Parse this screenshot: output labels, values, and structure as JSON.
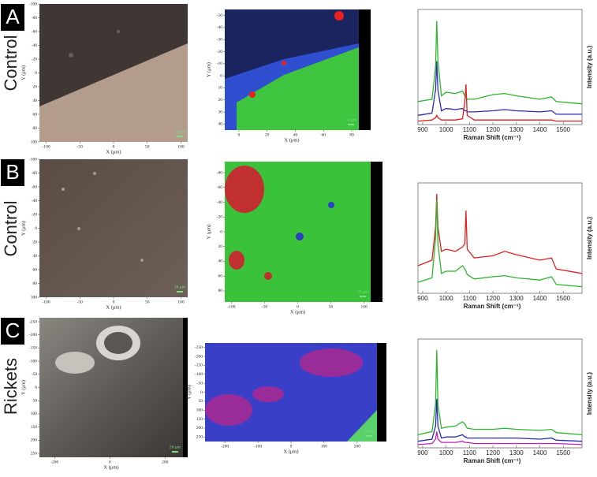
{
  "panels": [
    {
      "label": "A",
      "group": "Control",
      "optical": {
        "xlabel": "X (μm)",
        "ylabel": "Y (μm)",
        "xlim": [
          -110,
          110
        ],
        "xticks": [
          -100,
          -50,
          0,
          50,
          100
        ],
        "ylim": [
          -100,
          100
        ],
        "yticks": [
          -100,
          -80,
          -60,
          -40,
          -20,
          0,
          20,
          40,
          60,
          80,
          100
        ],
        "scale": "10 μm"
      },
      "map": {
        "xlabel": "X (μm)",
        "ylabel": "Y (μm)",
        "xlim": [
          -10,
          85
        ],
        "xticks": [
          0,
          20,
          40,
          60,
          80
        ],
        "ylim": [
          -55,
          45
        ],
        "yticks": [
          -50,
          -40,
          -30,
          -20,
          -10,
          0,
          10,
          20,
          30,
          40
        ],
        "scale": "4 μm"
      }
    },
    {
      "label": "B",
      "group": "Control",
      "optical": {
        "xlabel": "X (μm)",
        "ylabel": "Y (μm)",
        "xlim": [
          -110,
          110
        ],
        "xticks": [
          -100,
          -50,
          0,
          50,
          100
        ],
        "ylim": [
          -100,
          100
        ],
        "yticks": [
          -100,
          -80,
          -60,
          -40,
          -20,
          0,
          20,
          40,
          60,
          80,
          100
        ],
        "scale": "10 μm"
      },
      "map": {
        "xlabel": "X (μm)",
        "ylabel": "Y (μm)",
        "xlim": [
          -110,
          110
        ],
        "xticks": [
          -100,
          -50,
          0,
          50,
          100
        ],
        "ylim": [
          -95,
          95
        ],
        "yticks": [
          -80,
          -60,
          -40,
          -20,
          0,
          20,
          40,
          60,
          80
        ],
        "scale": "30 μm"
      }
    },
    {
      "label": "C",
      "group": "Rickets",
      "optical": {
        "xlabel": "X (μm)",
        "ylabel": "Y (μm)",
        "xlim": [
          -255,
          265
        ],
        "xticks": [
          -200,
          0,
          200
        ],
        "ylim": [
          -265,
          265
        ],
        "yticks": [
          -250,
          -200,
          -150,
          -100,
          -50,
          0,
          50,
          100,
          150,
          200,
          250
        ],
        "scale": "20 μm"
      },
      "map": {
        "xlabel": "X (μm)",
        "ylabel": "Y (μm)",
        "xlim": [
          -260,
          260
        ],
        "xticks": [
          -200,
          -100,
          0,
          100,
          200
        ],
        "ylim": [
          -275,
          275
        ],
        "yticks": [
          -250,
          -200,
          -150,
          -100,
          -50,
          0,
          50,
          100,
          150,
          200,
          250
        ],
        "scale": "10 μm"
      }
    }
  ],
  "chart_data": [
    {
      "type": "line",
      "xlabel": "Raman Shift (cm⁻¹)",
      "ylabel": "Intensity (a.u.)",
      "x": [
        880,
        940,
        955,
        960,
        965,
        980,
        1000,
        1040,
        1070,
        1080,
        1085,
        1090,
        1120,
        1200,
        1250,
        1300,
        1400,
        1450,
        1470,
        1580
      ],
      "xlim": [
        880,
        1580
      ],
      "xticks": [
        900,
        1000,
        1100,
        1200,
        1300,
        1400,
        1500
      ],
      "ylim": [
        0,
        100
      ],
      "series": [
        {
          "color": "#2db52d",
          "values": [
            20,
            22,
            50,
            90,
            55,
            25,
            28,
            27,
            29,
            25,
            24,
            22,
            22,
            26,
            27,
            25,
            22,
            24,
            20,
            18
          ]
        },
        {
          "color": "#2a2ab0",
          "values": [
            8,
            10,
            30,
            55,
            30,
            12,
            14,
            13,
            14,
            12,
            12,
            11,
            11,
            12,
            13,
            12,
            11,
            12,
            9,
            9
          ]
        },
        {
          "color": "#e02020",
          "values": [
            3,
            4,
            6,
            8,
            6,
            4,
            4,
            4,
            5,
            20,
            35,
            8,
            4,
            4,
            4,
            4,
            4,
            4,
            3,
            3
          ]
        }
      ]
    },
    {
      "type": "line",
      "xlabel": "Raman Shift (cm⁻¹)",
      "ylabel": "Intensity (a.u.)",
      "x": [
        880,
        940,
        955,
        960,
        965,
        980,
        1000,
        1040,
        1070,
        1080,
        1085,
        1090,
        1120,
        1200,
        1250,
        1300,
        1400,
        1450,
        1470,
        1580
      ],
      "xlim": [
        880,
        1580
      ],
      "xticks": [
        900,
        1000,
        1100,
        1200,
        1300,
        1400,
        1500
      ],
      "ylim": [
        0,
        100
      ],
      "series": [
        {
          "color": "#e02020",
          "values": [
            25,
            30,
            60,
            90,
            60,
            38,
            40,
            38,
            42,
            45,
            75,
            40,
            32,
            34,
            38,
            35,
            30,
            32,
            22,
            18
          ]
        },
        {
          "color": "#2db52d",
          "values": [
            10,
            14,
            50,
            85,
            45,
            18,
            20,
            20,
            25,
            22,
            20,
            17,
            13,
            15,
            16,
            14,
            12,
            15,
            8,
            6
          ]
        }
      ]
    },
    {
      "type": "line",
      "xlabel": "Raman Shift (cm⁻¹)",
      "ylabel": "Intensity (a.u.)",
      "x": [
        880,
        940,
        955,
        960,
        965,
        980,
        1000,
        1040,
        1070,
        1080,
        1085,
        1090,
        1120,
        1200,
        1250,
        1300,
        1400,
        1450,
        1470,
        1580
      ],
      "xlim": [
        880,
        1580
      ],
      "xticks": [
        900,
        1000,
        1100,
        1200,
        1300,
        1400,
        1500
      ],
      "ylim": [
        0,
        100
      ],
      "series": [
        {
          "color": "#2db52d",
          "values": [
            12,
            15,
            40,
            90,
            40,
            18,
            19,
            20,
            24,
            22,
            20,
            18,
            17,
            17,
            18,
            17,
            16,
            17,
            14,
            12
          ]
        },
        {
          "color": "#2a2ab0",
          "values": [
            6,
            8,
            20,
            45,
            20,
            9,
            10,
            10,
            12,
            10,
            10,
            9,
            9,
            9,
            9,
            9,
            8,
            9,
            7,
            6
          ]
        },
        {
          "color": "#c020b0",
          "values": [
            3,
            4,
            8,
            15,
            8,
            5,
            5,
            5,
            6,
            5,
            5,
            5,
            4,
            4,
            4,
            4,
            4,
            4,
            4,
            3
          ]
        }
      ]
    }
  ]
}
